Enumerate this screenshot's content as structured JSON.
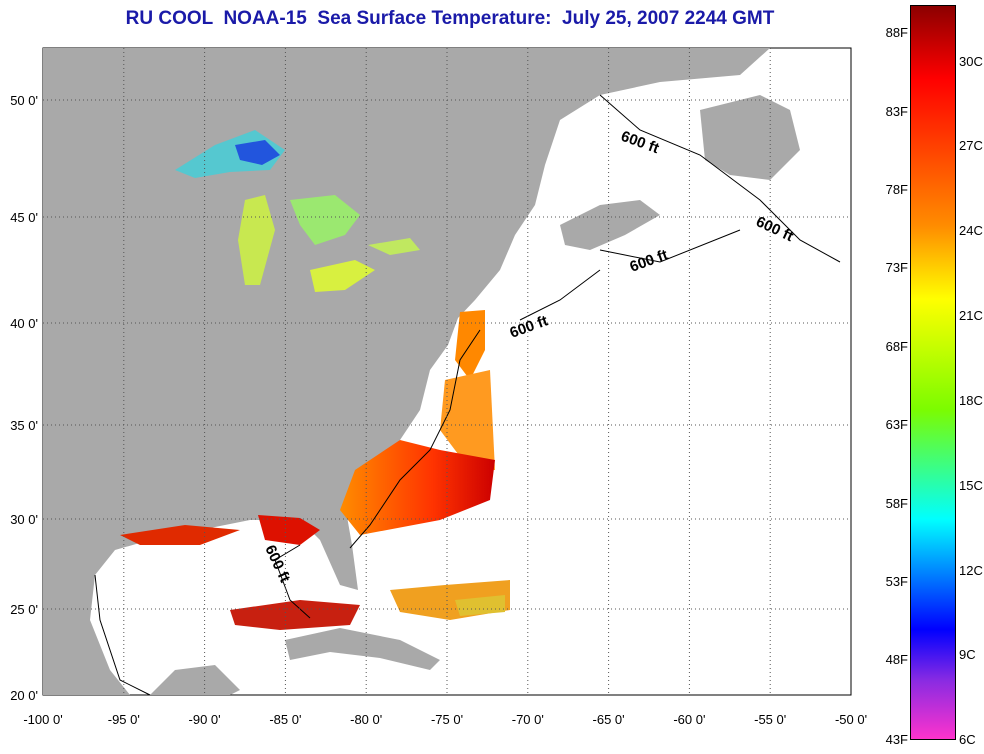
{
  "title": "RU COOL  NOAA-15  Sea Surface Temperature:  July 25, 2007 2244 GMT",
  "map": {
    "lon_ticks": [
      "-100 0'",
      "-95 0'",
      "-90 0'",
      "-85 0'",
      "-80 0'",
      "-75 0'",
      "-70 0'",
      "-65 0'",
      "-60 0'",
      "-55 0'",
      "-50 0'"
    ],
    "lat_ticks": [
      "50 0'",
      "45 0'",
      "40 0'",
      "35 0'",
      "30 0'",
      "25 0'",
      "20 0'"
    ],
    "contour_label": "600 ft",
    "colors": {
      "land": "#a9a9a9",
      "water": "#ffffff"
    }
  },
  "colorbar": {
    "f_labels": [
      "88F",
      "83F",
      "78F",
      "73F",
      "68F",
      "63F",
      "58F",
      "53F",
      "48F",
      "43F"
    ],
    "c_labels": [
      "30C",
      "27C",
      "24C",
      "21C",
      "18C",
      "15C",
      "12C",
      "9C",
      "6C"
    ],
    "colors": [
      "#8b0000",
      "#ff0000",
      "#ff8c00",
      "#ffff00",
      "#7cfc00",
      "#00ffff",
      "#0000ff",
      "#8a2be2",
      "#ff33cc"
    ]
  }
}
